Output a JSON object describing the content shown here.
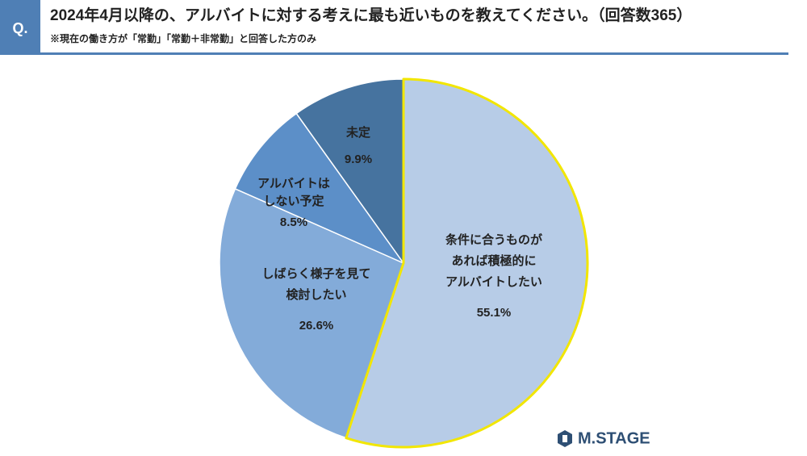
{
  "question_marker": "Q.",
  "brand": "M.STAGE",
  "chart_data": {
    "type": "pie",
    "title": "2024年4月以降の、アルバイトに対する考えに最も近いものを教えてください。（回答数365）",
    "subtitle": "※現在の働き方が「常勤」「常勤＋非常勤」と回答した方のみ",
    "categories": [
      [
        "条件に合うものが",
        "あれば積極的に",
        "アルバイトしたい"
      ],
      [
        "しばらく様子を見て",
        "検討したい"
      ],
      [
        "アルバイトは",
        "しない予定"
      ],
      [
        "未定"
      ]
    ],
    "values": [
      55.1,
      26.6,
      8.5,
      9.9
    ],
    "value_labels": [
      "55.1%",
      "26.6%",
      "8.5%",
      "9.9%"
    ],
    "colors": [
      "#b7cce7",
      "#83abd9",
      "#5c8fc8",
      "#46739f"
    ],
    "highlight_color": "#f2e600"
  }
}
